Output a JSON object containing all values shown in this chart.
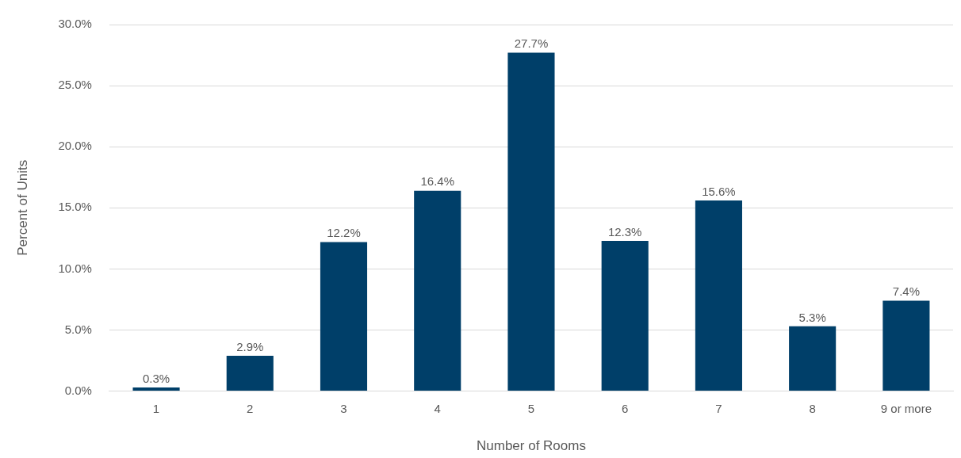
{
  "chart_data": {
    "type": "bar",
    "xlabel": "Number of Rooms",
    "ylabel": "Percent of Units",
    "categories": [
      "1",
      "2",
      "3",
      "4",
      "5",
      "6",
      "7",
      "8",
      "9 or more"
    ],
    "values": [
      0.3,
      2.9,
      12.2,
      16.4,
      27.7,
      12.3,
      15.6,
      5.3,
      7.4
    ],
    "value_labels": [
      "0.3%",
      "2.9%",
      "12.2%",
      "16.4%",
      "27.7%",
      "12.3%",
      "15.6%",
      "5.3%",
      "7.4%"
    ],
    "color": "#003f69",
    "ylim": [
      0,
      30
    ],
    "yticks": [
      {
        "value": 0,
        "label": "0.0%"
      },
      {
        "value": 5,
        "label": "5.0%"
      },
      {
        "value": 10,
        "label": "10.0%"
      },
      {
        "value": 15,
        "label": "15.0%"
      },
      {
        "value": 20,
        "label": "20.0%"
      },
      {
        "value": 25,
        "label": "25.0%"
      },
      {
        "value": 30,
        "label": "30.0%"
      }
    ],
    "grid": "y",
    "legend": false
  }
}
